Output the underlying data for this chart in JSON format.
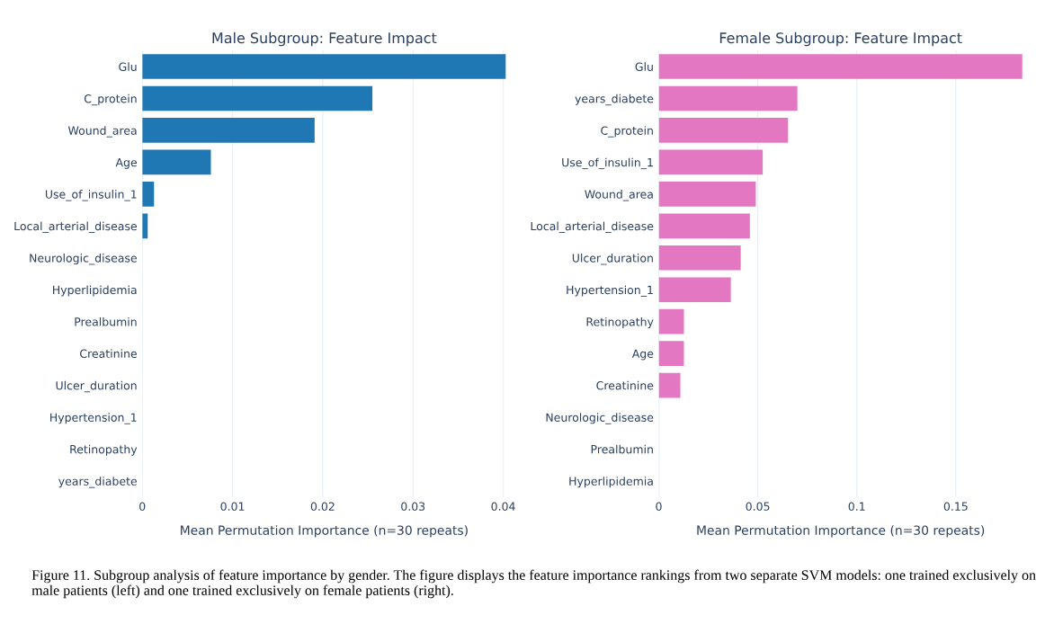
{
  "chart_data": [
    {
      "type": "bar",
      "orientation": "horizontal",
      "title": "Male Subgroup: Feature Impact",
      "xlabel": "Mean Permutation Importance (n=30 repeats)",
      "categories": [
        "Glu",
        "C_protein",
        "Wound_area",
        "Age",
        "Use_of_insulin_1",
        "Local_arterial_disease",
        "Neurologic_disease",
        "Hyperlipidemia",
        "Prealbumin",
        "Creatinine",
        "Ulcer_duration",
        "Hypertension_1",
        "Retinopathy",
        "years_diabete"
      ],
      "values": [
        0.0403,
        0.0255,
        0.0191,
        0.0076,
        0.0013,
        0.0006,
        0,
        0,
        0,
        0,
        0,
        0,
        0,
        0
      ],
      "color": "#1f77b4",
      "xlim": [
        0,
        0.0403
      ],
      "xticks": [
        0,
        0.01,
        0.02,
        0.03,
        0.04
      ],
      "grid": "x"
    },
    {
      "type": "bar",
      "orientation": "horizontal",
      "title": "Female Subgroup: Feature Impact",
      "xlabel": "Mean Permutation Importance (n=30 repeats)",
      "categories": [
        "Glu",
        "years_diabete",
        "C_protein",
        "Use_of_insulin_1",
        "Wound_area",
        "Local_arterial_disease",
        "Ulcer_duration",
        "Hypertension_1",
        "Retinopathy",
        "Age",
        "Creatinine",
        "Neurologic_disease",
        "Prealbumin",
        "Hyperlipidemia"
      ],
      "values": [
        0.1836,
        0.07,
        0.0653,
        0.0525,
        0.049,
        0.046,
        0.0414,
        0.0364,
        0.0127,
        0.0127,
        0.0109,
        0,
        0,
        0
      ],
      "color": "#e377c2",
      "xlim": [
        0,
        0.1836
      ],
      "xticks": [
        0,
        0.05,
        0.1,
        0.15
      ],
      "grid": "x",
      "annotations": [
        "Figure 11. Subgroup analysis of feature importance by gender. The figure displays the feature importance rankings from two separate SVM models: one trained exclusively on male patients (left) and one trained exclusively on female patients (right)."
      ]
    }
  ]
}
